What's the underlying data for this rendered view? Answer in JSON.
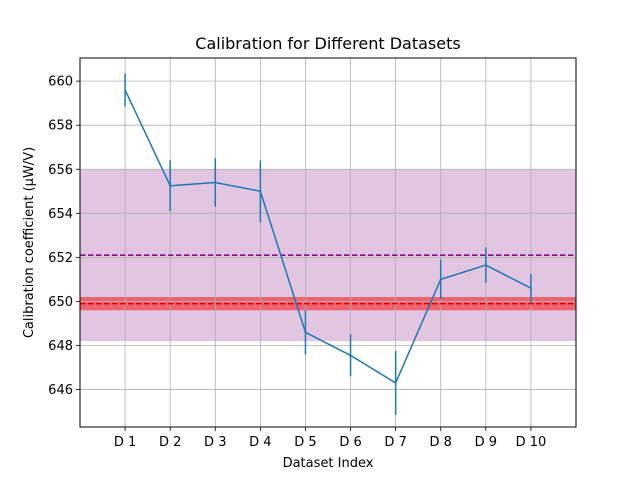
{
  "chart_data": {
    "type": "line",
    "title": "Calibration for Different Datasets",
    "xlabel": "Dataset Index",
    "ylabel": "Calibration coefficient (μW/V)",
    "categories": [
      "D 1",
      "D 2",
      "D 3",
      "D 4",
      "D 5",
      "D 6",
      "D 7",
      "D 8",
      "D 9",
      "D 10"
    ],
    "series": [
      {
        "values": [
          659.6,
          655.25,
          655.4,
          655.0,
          648.6,
          647.55,
          646.3,
          651.0,
          651.65,
          650.6
        ],
        "errors": [
          0.75,
          1.15,
          1.1,
          1.4,
          1.0,
          0.95,
          1.45,
          0.9,
          0.8,
          0.65
        ],
        "color": "#1f77b4"
      }
    ],
    "reference_lines": [
      {
        "y": 652.1,
        "band": [
          648.2,
          656.0
        ],
        "color": "#800080",
        "band_color": "#c996c9",
        "style": "dashed"
      },
      {
        "y": 649.9,
        "band": [
          649.6,
          650.2
        ],
        "color": "#e00000",
        "band_color": "#ff0000",
        "style": "dashed"
      }
    ],
    "ylim": [
      644.3,
      661.05
    ],
    "xlim": [
      0,
      11
    ],
    "yticks": [
      646,
      648,
      650,
      652,
      654,
      656,
      658,
      660
    ],
    "grid": true
  }
}
